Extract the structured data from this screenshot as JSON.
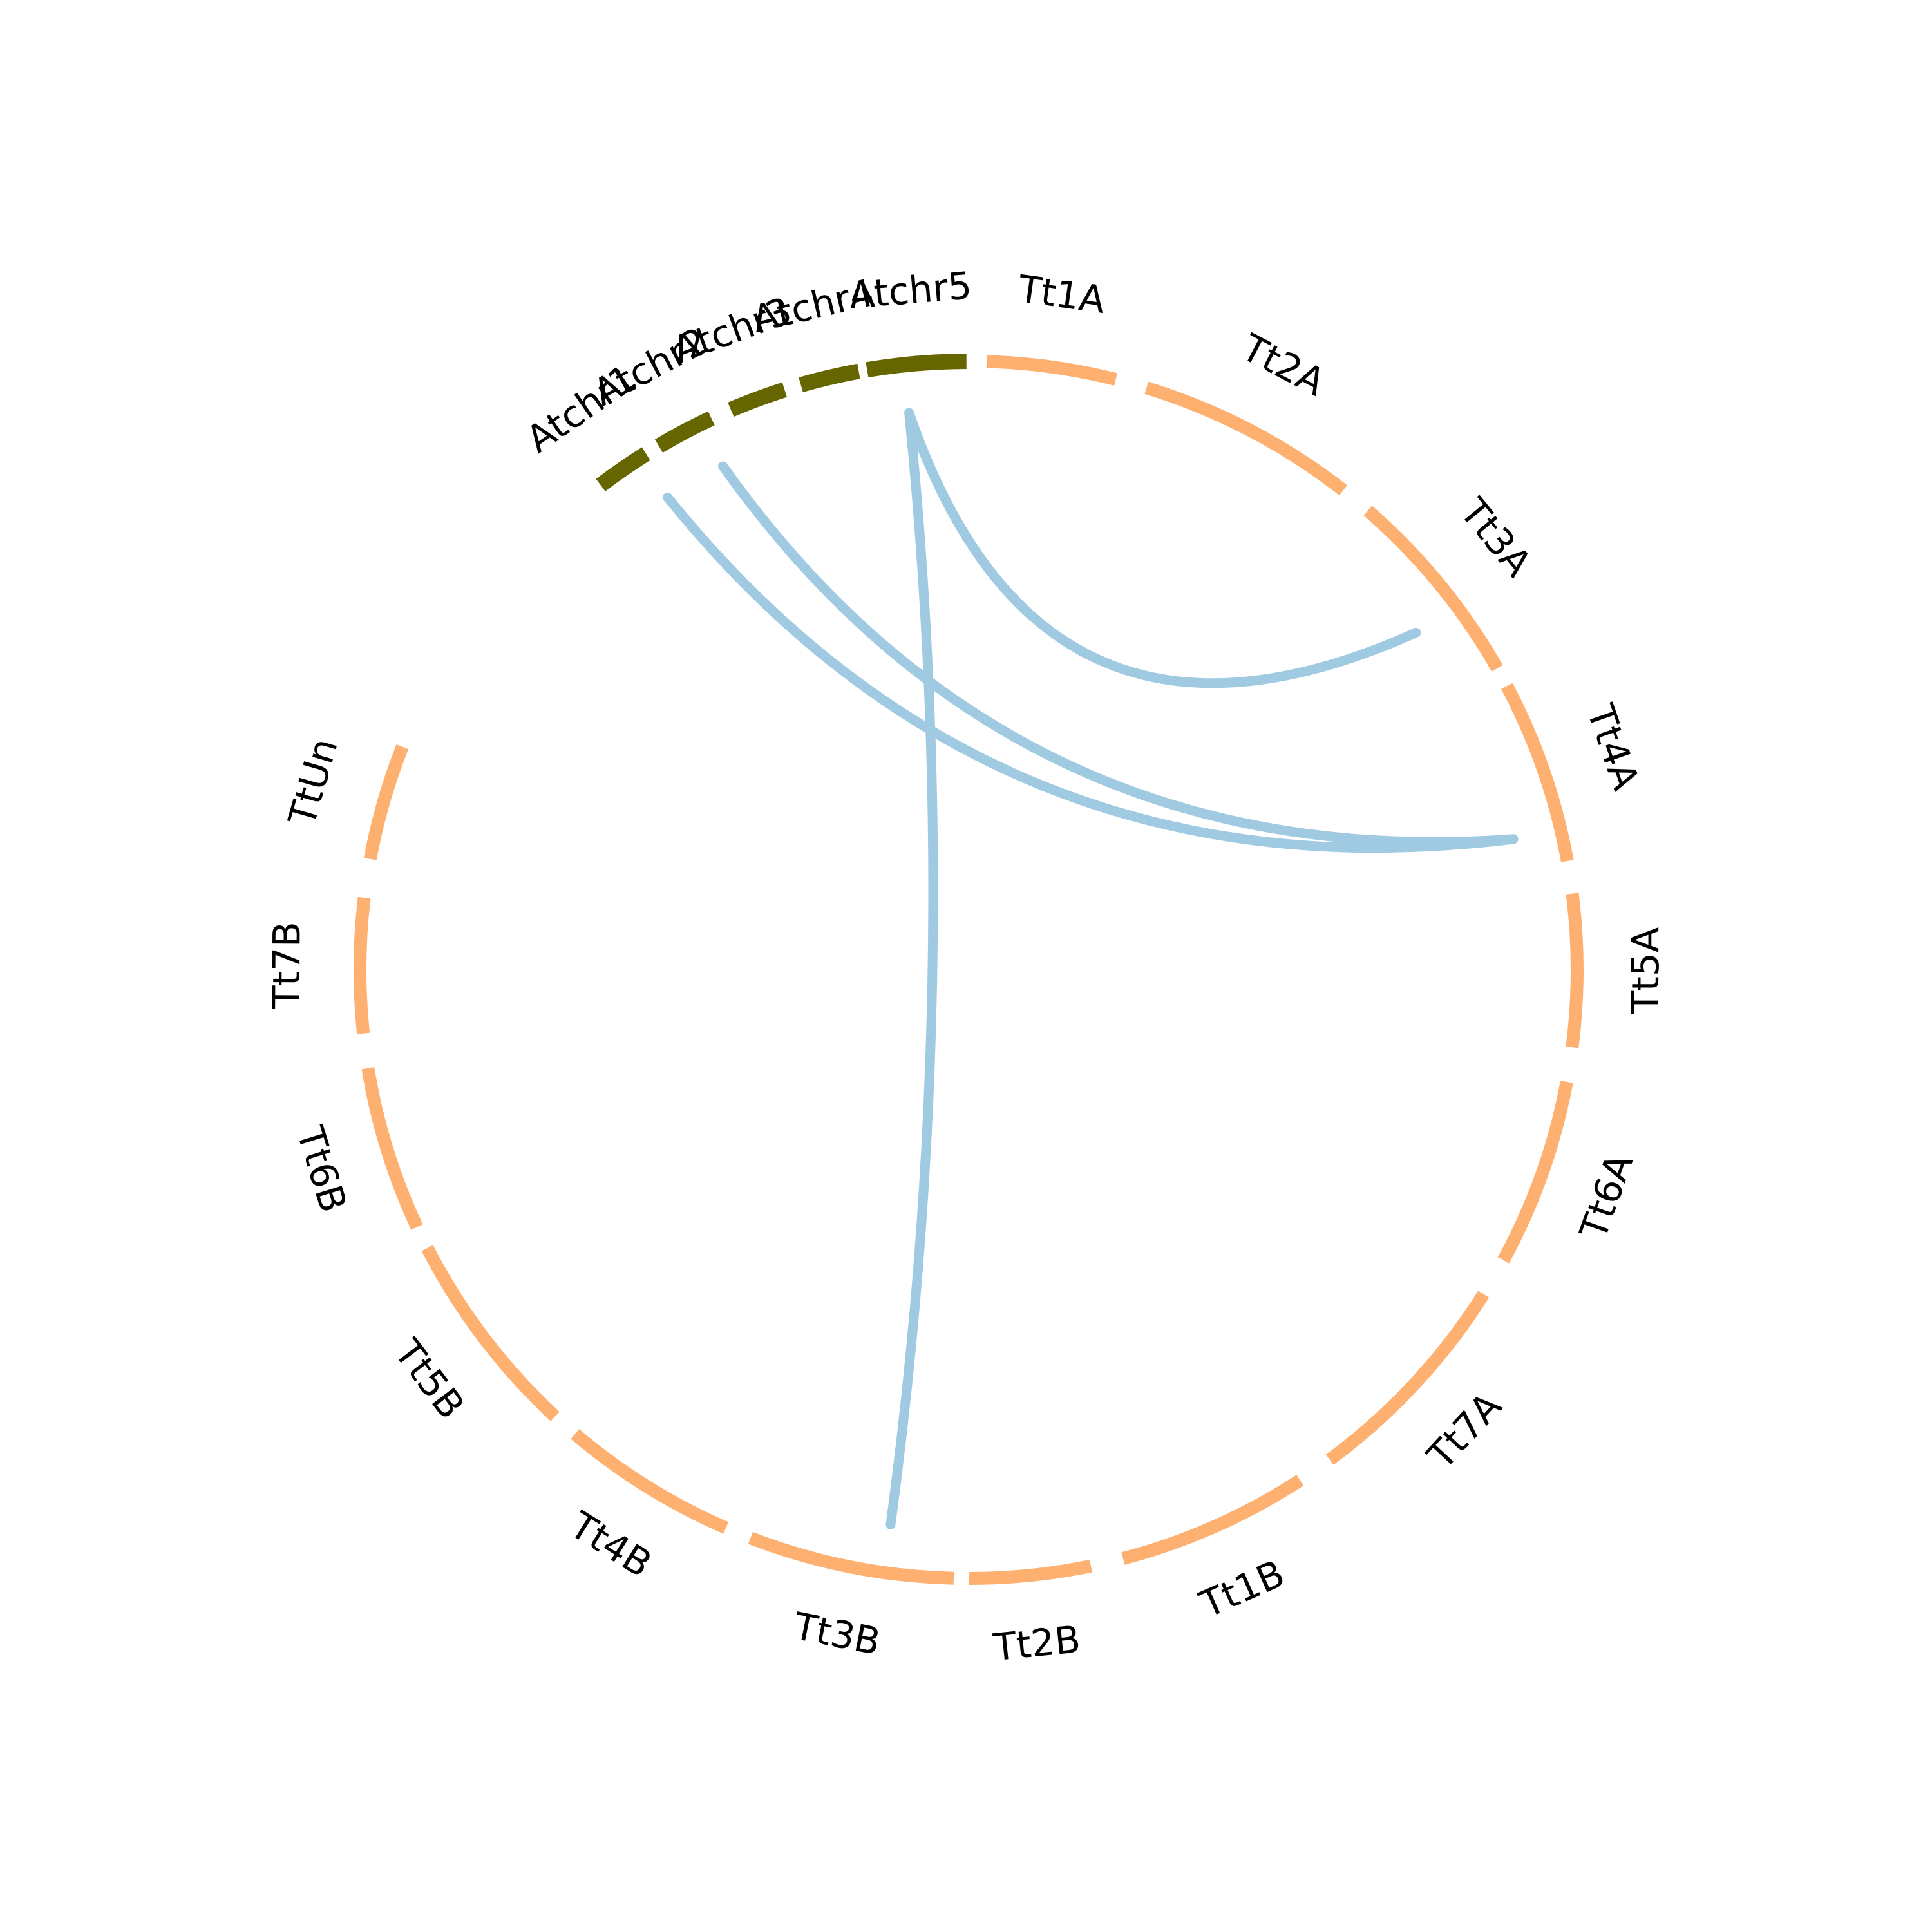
{
  "colors": {
    "arabidopsis": "#666600",
    "triticum": "#fdb06f",
    "link": "#a0cae2",
    "label": "#000000"
  },
  "segments": [
    {
      "id": "Atchr1",
      "label": "Atchr1",
      "group": "arabidopsis"
    },
    {
      "id": "Atchr2",
      "label": "Atchr2",
      "group": "arabidopsis"
    },
    {
      "id": "Atchr3",
      "label": "Atchr3",
      "group": "arabidopsis"
    },
    {
      "id": "Atchr4",
      "label": "Atchr4",
      "group": "arabidopsis"
    },
    {
      "id": "Atchr5",
      "label": "Atchr5",
      "group": "arabidopsis"
    },
    {
      "id": "Tt1A",
      "label": "Tt1A",
      "group": "triticum"
    },
    {
      "id": "Tt2A",
      "label": "Tt2A",
      "group": "triticum"
    },
    {
      "id": "Tt3A",
      "label": "Tt3A",
      "group": "triticum"
    },
    {
      "id": "Tt4A",
      "label": "Tt4A",
      "group": "triticum"
    },
    {
      "id": "Tt5A",
      "label": "Tt5A",
      "group": "triticum"
    },
    {
      "id": "Tt6A",
      "label": "Tt6A",
      "group": "triticum"
    },
    {
      "id": "Tt7A",
      "label": "Tt7A",
      "group": "triticum"
    },
    {
      "id": "Tt1B",
      "label": "Tt1B",
      "group": "triticum"
    },
    {
      "id": "Tt2B",
      "label": "Tt2B",
      "group": "triticum"
    },
    {
      "id": "Tt3B",
      "label": "Tt3B",
      "group": "triticum"
    },
    {
      "id": "Tt4B",
      "label": "Tt4B",
      "group": "triticum"
    },
    {
      "id": "Tt5B",
      "label": "Tt5B",
      "group": "triticum"
    },
    {
      "id": "Tt6B",
      "label": "Tt6B",
      "group": "triticum"
    },
    {
      "id": "Tt7B",
      "label": "Tt7B",
      "group": "triticum"
    },
    {
      "id": "TtUn",
      "label": "TtUn",
      "group": "triticum"
    }
  ],
  "links": [
    {
      "from": "Atchr5",
      "to": "Tt3A"
    },
    {
      "from": "Atchr5",
      "to": "Tt3B"
    },
    {
      "from": "Atchr2",
      "to": "Tt4A"
    },
    {
      "from": "Atchr1",
      "to": "Tt4A"
    }
  ]
}
